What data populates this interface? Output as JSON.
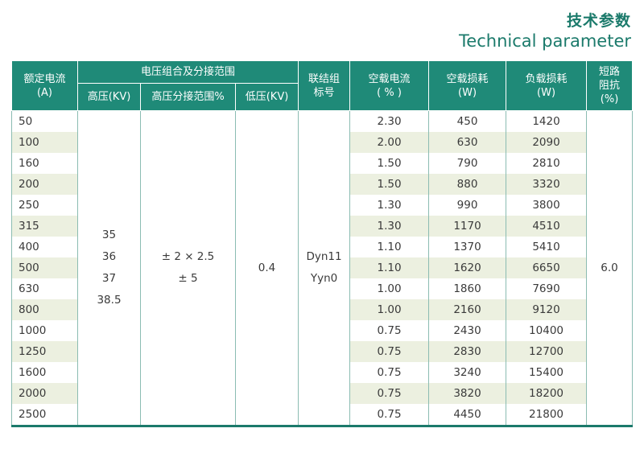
{
  "title": {
    "cn": "技术参数",
    "en": "Technical parameter"
  },
  "headers": {
    "rated_current": [
      "额定电流",
      "(A)"
    ],
    "voltage_group": "电压组合及分接范围",
    "hv": "高压(KV)",
    "hv_tap": "高压分接范围%",
    "lv": "低压(KV)",
    "connection": [
      "联结组",
      "标号"
    ],
    "no_load_current": [
      "空载电流",
      "( % )"
    ],
    "no_load_loss": [
      "空载损耗",
      "(W)"
    ],
    "load_loss": [
      "负载损耗",
      "(W)"
    ],
    "impedance": [
      "短路",
      "阻抗",
      "(%)"
    ]
  },
  "merged": {
    "hv_values": [
      "35",
      "36",
      "37",
      "38.5"
    ],
    "hv_tap": [
      "± 2 × 2.5",
      "± 5"
    ],
    "lv": "0.4",
    "connection": [
      "Dyn11",
      "Yyn0"
    ],
    "impedance": "6.0"
  },
  "rows": [
    {
      "capacity": "50",
      "i0": "2.30",
      "p0": "450",
      "pk": "1420"
    },
    {
      "capacity": "100",
      "i0": "2.00",
      "p0": "630",
      "pk": "2090"
    },
    {
      "capacity": "160",
      "i0": "1.50",
      "p0": "790",
      "pk": "2810"
    },
    {
      "capacity": "200",
      "i0": "1.50",
      "p0": "880",
      "pk": "3320"
    },
    {
      "capacity": "250",
      "i0": "1.30",
      "p0": "990",
      "pk": "3800"
    },
    {
      "capacity": "315",
      "i0": "1.30",
      "p0": "1170",
      "pk": "4510"
    },
    {
      "capacity": "400",
      "i0": "1.10",
      "p0": "1370",
      "pk": "5410"
    },
    {
      "capacity": "500",
      "i0": "1.10",
      "p0": "1620",
      "pk": "6650"
    },
    {
      "capacity": "630",
      "i0": "1.00",
      "p0": "1860",
      "pk": "7690"
    },
    {
      "capacity": "800",
      "i0": "1.00",
      "p0": "2160",
      "pk": "9120"
    },
    {
      "capacity": "1000",
      "i0": "0.75",
      "p0": "2430",
      "pk": "10400"
    },
    {
      "capacity": "1250",
      "i0": "0.75",
      "p0": "2830",
      "pk": "12700"
    },
    {
      "capacity": "1600",
      "i0": "0.75",
      "p0": "3240",
      "pk": "15400"
    },
    {
      "capacity": "2000",
      "i0": "0.75",
      "p0": "3820",
      "pk": "18200"
    },
    {
      "capacity": "2500",
      "i0": "0.75",
      "p0": "4450",
      "pk": "21800"
    }
  ],
  "colors": {
    "accent": "#1f8a78",
    "title": "#1b7a6b",
    "stripe": "#ecf0e0"
  }
}
